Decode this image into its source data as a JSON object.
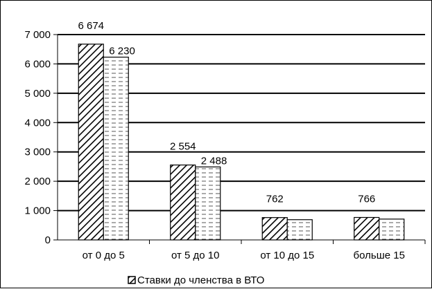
{
  "chart_data": {
    "type": "bar",
    "categories": [
      "от 0 до 5",
      "от 5 до 10",
      "от 10 до 15",
      "больше 15"
    ],
    "series": [
      {
        "name": "Ставки до членства в ВТО",
        "values": [
          6674,
          2554,
          762,
          766
        ],
        "value_labels": [
          "6 674",
          "2 554",
          "762",
          "766"
        ],
        "pattern": "diagonal-hatch",
        "color": "#000000"
      },
      {
        "values": [
          6230,
          2488,
          690,
          710
        ],
        "value_labels": [
          "6 230",
          "2 488",
          "",
          ""
        ],
        "pattern": "horizontal-dashes",
        "color": "#000000"
      }
    ],
    "y_ticks": [
      0,
      1000,
      2000,
      3000,
      4000,
      5000,
      6000,
      7000
    ],
    "y_tick_labels": [
      "0",
      "1 000",
      "2 000",
      "3 000",
      "4 000",
      "5 000",
      "6 000",
      "7 000"
    ],
    "ylim": [
      0,
      7000
    ],
    "grid": true,
    "legend_position": "bottom",
    "title": "",
    "xlabel": "",
    "ylabel": ""
  }
}
